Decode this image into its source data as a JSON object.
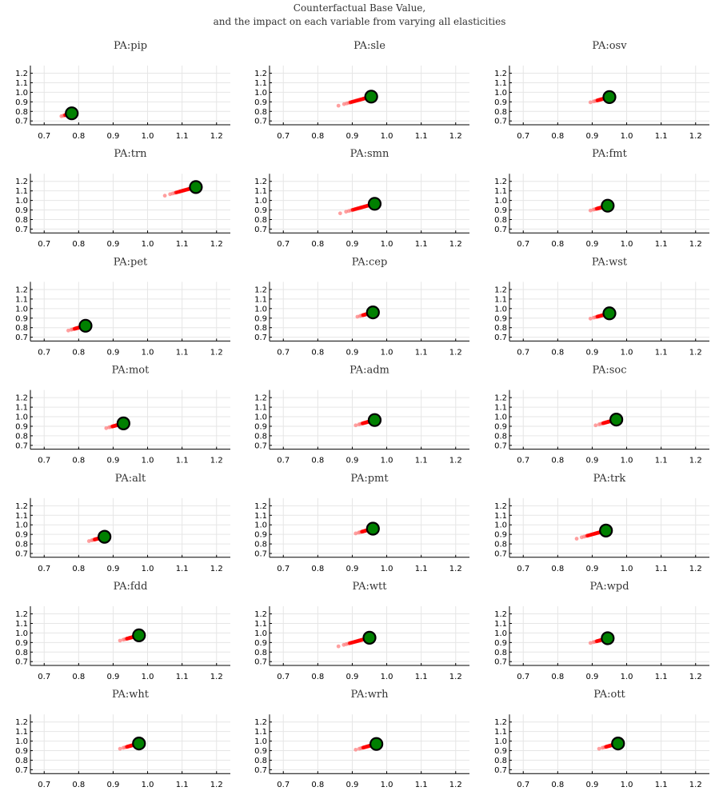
{
  "figure": {
    "title_lines": [
      "Counterfactual Base Value,",
      "and the impact on each variable from varying all elasticities"
    ]
  },
  "colors": {
    "base_marker": "#008000",
    "base_marker_edge": "#000000",
    "trace": "#ff0000",
    "trace_faded": "#ff7f7f",
    "grid": "#e6e6e6"
  },
  "chart_data": {
    "type": "scatter",
    "xlim": [
      0.66,
      1.24
    ],
    "ylim": [
      0.66,
      1.28
    ],
    "xticks": [
      0.7,
      0.8,
      0.9,
      1.0,
      1.1,
      1.2
    ],
    "yticks": [
      0.7,
      0.8,
      0.9,
      1.0,
      1.1,
      1.2
    ],
    "xtick_labels": [
      "0.7",
      "0.8",
      "0.9",
      "1.0",
      "1.1",
      "1.2"
    ],
    "ytick_labels": [
      "0.7",
      "0.8",
      "0.9",
      "1.0",
      "1.1",
      "1.2"
    ],
    "grid": true,
    "legend": "none",
    "panels": [
      {
        "title": "PA:pip",
        "base": [
          0.78,
          0.78
        ],
        "trace_start": [
          0.75,
          0.75
        ]
      },
      {
        "title": "PA:sle",
        "base": [
          0.955,
          0.955
        ],
        "trace_start": [
          0.86,
          0.86
        ]
      },
      {
        "title": "PA:osv",
        "base": [
          0.95,
          0.95
        ],
        "trace_start": [
          0.895,
          0.895
        ]
      },
      {
        "title": "PA:trn",
        "base": [
          1.14,
          1.14
        ],
        "trace_start": [
          1.05,
          1.05
        ]
      },
      {
        "title": "PA:smn",
        "base": [
          0.965,
          0.965
        ],
        "trace_start": [
          0.865,
          0.865
        ]
      },
      {
        "title": "PA:fmt",
        "base": [
          0.945,
          0.945
        ],
        "trace_start": [
          0.895,
          0.895
        ]
      },
      {
        "title": "PA:pet",
        "base": [
          0.82,
          0.82
        ],
        "trace_start": [
          0.77,
          0.77
        ]
      },
      {
        "title": "PA:cep",
        "base": [
          0.96,
          0.96
        ],
        "trace_start": [
          0.915,
          0.915
        ]
      },
      {
        "title": "PA:wst",
        "base": [
          0.95,
          0.95
        ],
        "trace_start": [
          0.895,
          0.895
        ]
      },
      {
        "title": "PA:mot",
        "base": [
          0.93,
          0.93
        ],
        "trace_start": [
          0.88,
          0.88
        ]
      },
      {
        "title": "PA:adm",
        "base": [
          0.965,
          0.965
        ],
        "trace_start": [
          0.91,
          0.91
        ]
      },
      {
        "title": "PA:soc",
        "base": [
          0.97,
          0.97
        ],
        "trace_start": [
          0.91,
          0.91
        ]
      },
      {
        "title": "PA:alt",
        "base": [
          0.875,
          0.875
        ],
        "trace_start": [
          0.83,
          0.83
        ]
      },
      {
        "title": "PA:pmt",
        "base": [
          0.96,
          0.96
        ],
        "trace_start": [
          0.91,
          0.91
        ]
      },
      {
        "title": "PA:trk",
        "base": [
          0.94,
          0.94
        ],
        "trace_start": [
          0.855,
          0.855
        ]
      },
      {
        "title": "PA:fdd",
        "base": [
          0.975,
          0.975
        ],
        "trace_start": [
          0.92,
          0.92
        ]
      },
      {
        "title": "PA:wtt",
        "base": [
          0.95,
          0.95
        ],
        "trace_start": [
          0.86,
          0.86
        ]
      },
      {
        "title": "PA:wpd",
        "base": [
          0.945,
          0.945
        ],
        "trace_start": [
          0.895,
          0.895
        ]
      },
      {
        "title": "PA:wht",
        "base": [
          0.975,
          0.975
        ],
        "trace_start": [
          0.92,
          0.92
        ]
      },
      {
        "title": "PA:wrh",
        "base": [
          0.97,
          0.97
        ],
        "trace_start": [
          0.91,
          0.91
        ]
      },
      {
        "title": "PA:ott",
        "base": [
          0.975,
          0.975
        ],
        "trace_start": [
          0.92,
          0.92
        ]
      }
    ]
  }
}
